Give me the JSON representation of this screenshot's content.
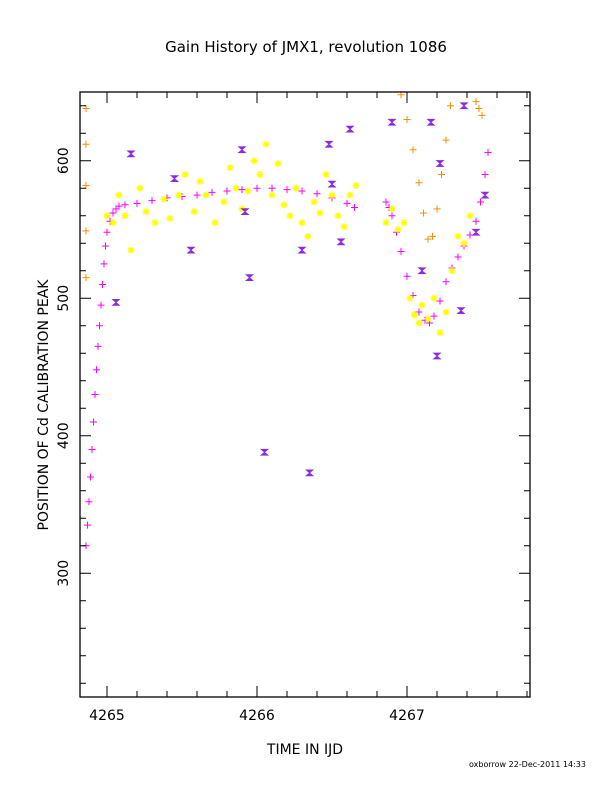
{
  "chart_data": {
    "type": "scatter",
    "title": "Gain History of JMX1, revolution 1086",
    "xlabel": "TIME IN IJD",
    "ylabel": "POSITION OF Cd CALIBRATION PEAK",
    "xlim": [
      4264.82,
      4267.82
    ],
    "ylim": [
      210,
      650
    ],
    "x_ticks": [
      "4265",
      "4266",
      "4267"
    ],
    "y_ticks": [
      "300",
      "400",
      "500",
      "600"
    ],
    "credit": "oxborrow 22-Dec-2011 14:33",
    "colors": {
      "magenta": "#ff00ff",
      "orange": "#ff8c00",
      "yellow": "#ffff00",
      "purple": "#8a2be2"
    },
    "series": [
      {
        "marker": "plus",
        "color": "#ff00ff",
        "points": [
          [
            4264.86,
            320
          ],
          [
            4264.87,
            335
          ],
          [
            4264.88,
            352
          ],
          [
            4264.89,
            370
          ],
          [
            4264.9,
            390
          ],
          [
            4264.91,
            410
          ],
          [
            4264.92,
            430
          ],
          [
            4264.93,
            448
          ],
          [
            4264.94,
            465
          ],
          [
            4264.95,
            480
          ],
          [
            4264.96,
            495
          ],
          [
            4264.97,
            510
          ],
          [
            4264.98,
            525
          ],
          [
            4264.99,
            538
          ],
          [
            4265.0,
            548
          ],
          [
            4265.02,
            556
          ],
          [
            4265.04,
            562
          ],
          [
            4265.06,
            565
          ],
          [
            4265.08,
            567
          ],
          [
            4265.12,
            568
          ],
          [
            4265.2,
            569
          ],
          [
            4265.3,
            571
          ],
          [
            4265.4,
            573
          ],
          [
            4265.5,
            574
          ],
          [
            4265.6,
            575
          ],
          [
            4265.7,
            577
          ],
          [
            4265.8,
            578
          ],
          [
            4265.9,
            579
          ],
          [
            4266.0,
            580
          ],
          [
            4266.1,
            580
          ],
          [
            4266.2,
            579
          ],
          [
            4266.3,
            578
          ],
          [
            4266.4,
            576
          ],
          [
            4266.5,
            573
          ],
          [
            4266.6,
            569
          ],
          [
            4266.65,
            566
          ],
          [
            4266.86,
            570
          ],
          [
            4266.88,
            566
          ],
          [
            4266.9,
            560
          ],
          [
            4266.93,
            548
          ],
          [
            4266.96,
            534
          ],
          [
            4267.0,
            516
          ],
          [
            4267.04,
            502
          ],
          [
            4267.08,
            490
          ],
          [
            4267.12,
            484
          ],
          [
            4267.15,
            482
          ],
          [
            4267.18,
            487
          ],
          [
            4267.22,
            498
          ],
          [
            4267.26,
            512
          ],
          [
            4267.3,
            522
          ],
          [
            4267.34,
            530
          ],
          [
            4267.38,
            538
          ],
          [
            4267.42,
            546
          ],
          [
            4267.46,
            556
          ],
          [
            4267.49,
            570
          ],
          [
            4267.52,
            590
          ],
          [
            4267.54,
            606
          ]
        ]
      },
      {
        "marker": "plus",
        "color": "#ff8c00",
        "points": [
          [
            4264.86,
            638
          ],
          [
            4264.86,
            612
          ],
          [
            4264.86,
            582
          ],
          [
            4264.86,
            549
          ],
          [
            4264.86,
            515
          ],
          [
            4266.96,
            648
          ],
          [
            4267.0,
            630
          ],
          [
            4267.04,
            608
          ],
          [
            4267.08,
            584
          ],
          [
            4267.11,
            562
          ],
          [
            4267.14,
            543
          ],
          [
            4267.17,
            545
          ],
          [
            4267.2,
            565
          ],
          [
            4267.23,
            590
          ],
          [
            4267.26,
            615
          ],
          [
            4267.29,
            640
          ],
          [
            4267.46,
            643
          ],
          [
            4267.48,
            638
          ],
          [
            4267.5,
            633
          ]
        ]
      },
      {
        "marker": "cross",
        "color": "#ffff00",
        "points": [
          [
            4265.0,
            560
          ],
          [
            4265.04,
            555
          ],
          [
            4265.08,
            575
          ],
          [
            4265.12,
            560
          ],
          [
            4265.16,
            535
          ],
          [
            4265.22,
            580
          ],
          [
            4265.26,
            563
          ],
          [
            4265.32,
            555
          ],
          [
            4265.38,
            572
          ],
          [
            4265.42,
            558
          ],
          [
            4265.48,
            575
          ],
          [
            4265.52,
            590
          ],
          [
            4265.58,
            563
          ],
          [
            4265.62,
            585
          ],
          [
            4265.66,
            575
          ],
          [
            4265.72,
            555
          ],
          [
            4265.78,
            570
          ],
          [
            4265.82,
            595
          ],
          [
            4265.86,
            580
          ],
          [
            4265.9,
            565
          ],
          [
            4265.94,
            578
          ],
          [
            4265.98,
            600
          ],
          [
            4266.02,
            590
          ],
          [
            4266.06,
            612
          ],
          [
            4266.1,
            575
          ],
          [
            4266.14,
            598
          ],
          [
            4266.18,
            568
          ],
          [
            4266.22,
            560
          ],
          [
            4266.26,
            580
          ],
          [
            4266.3,
            555
          ],
          [
            4266.34,
            545
          ],
          [
            4266.38,
            570
          ],
          [
            4266.42,
            562
          ],
          [
            4266.46,
            590
          ],
          [
            4266.5,
            575
          ],
          [
            4266.54,
            560
          ],
          [
            4266.58,
            552
          ],
          [
            4266.62,
            575
          ],
          [
            4266.66,
            582
          ],
          [
            4266.86,
            555
          ],
          [
            4266.9,
            565
          ],
          [
            4266.94,
            550
          ],
          [
            4266.98,
            555
          ],
          [
            4267.02,
            500
          ],
          [
            4267.05,
            488
          ],
          [
            4267.08,
            482
          ],
          [
            4267.1,
            495
          ],
          [
            4267.14,
            485
          ],
          [
            4267.18,
            500
          ],
          [
            4267.22,
            475
          ],
          [
            4267.26,
            490
          ],
          [
            4267.3,
            520
          ],
          [
            4267.34,
            545
          ],
          [
            4267.38,
            540
          ],
          [
            4267.42,
            560
          ]
        ]
      },
      {
        "marker": "bowtie",
        "color": "#8a2be2",
        "points": [
          [
            4265.06,
            497
          ],
          [
            4265.16,
            605
          ],
          [
            4265.45,
            587
          ],
          [
            4265.56,
            535
          ],
          [
            4265.9,
            608
          ],
          [
            4265.92,
            563
          ],
          [
            4265.95,
            515
          ],
          [
            4266.05,
            388
          ],
          [
            4266.3,
            535
          ],
          [
            4266.35,
            373
          ],
          [
            4266.48,
            612
          ],
          [
            4266.5,
            583
          ],
          [
            4266.56,
            541
          ],
          [
            4266.62,
            623
          ],
          [
            4266.9,
            628
          ],
          [
            4267.1,
            520
          ],
          [
            4267.16,
            628
          ],
          [
            4267.2,
            458
          ],
          [
            4267.22,
            598
          ],
          [
            4267.36,
            491
          ],
          [
            4267.38,
            640
          ],
          [
            4267.46,
            548
          ],
          [
            4267.52,
            575
          ]
        ]
      }
    ]
  }
}
